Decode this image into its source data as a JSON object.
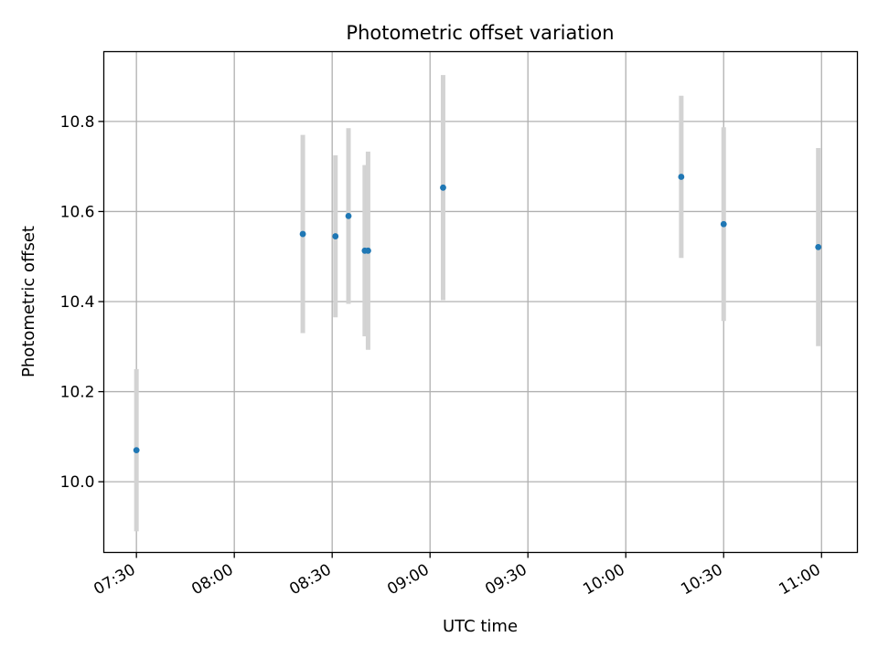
{
  "chart_data": {
    "type": "scatter",
    "title": "Photometric offset variation",
    "xlabel": "UTC time",
    "ylabel": "Photometric offset",
    "x_ticks": [
      "07:30",
      "08:00",
      "08:30",
      "09:00",
      "09:30",
      "10:00",
      "10:30",
      "11:00"
    ],
    "y_ticks": [
      "10.0",
      "10.2",
      "10.4",
      "10.6",
      "10.8"
    ],
    "xlim": [
      "07:20",
      "11:11"
    ],
    "ylim": [
      9.843,
      10.955
    ],
    "grid": true,
    "error_bars": true,
    "points": [
      {
        "x": "07:30",
        "y": 10.07,
        "lo": 9.89,
        "hi": 10.25
      },
      {
        "x": "08:21",
        "y": 10.55,
        "lo": 10.33,
        "hi": 10.77
      },
      {
        "x": "08:31",
        "y": 10.545,
        "lo": 10.365,
        "hi": 10.725
      },
      {
        "x": "08:35",
        "y": 10.59,
        "lo": 10.395,
        "hi": 10.785
      },
      {
        "x": "08:40",
        "y": 10.513,
        "lo": 10.323,
        "hi": 10.703
      },
      {
        "x": "08:41",
        "y": 10.513,
        "lo": 10.293,
        "hi": 10.733
      },
      {
        "x": "09:04",
        "y": 10.653,
        "lo": 10.403,
        "hi": 10.903
      },
      {
        "x": "10:17",
        "y": 10.677,
        "lo": 10.497,
        "hi": 10.857
      },
      {
        "x": "10:30",
        "y": 10.572,
        "lo": 10.357,
        "hi": 10.787
      },
      {
        "x": "10:59",
        "y": 10.521,
        "lo": 10.301,
        "hi": 10.741
      }
    ]
  },
  "colors": {
    "marker": "#1f77b4",
    "errorbar": "#d3d3d3",
    "grid": "#b0b0b0",
    "axes": "#000000"
  }
}
